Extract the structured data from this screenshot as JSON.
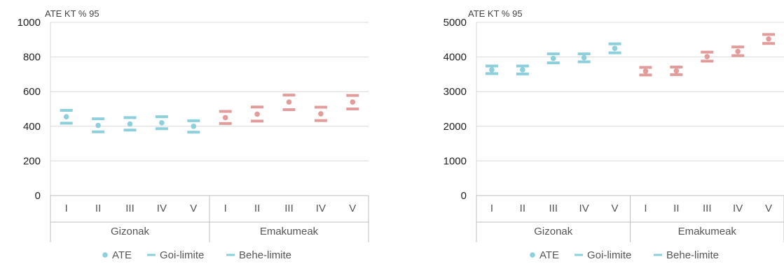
{
  "chart_data": [
    {
      "type": "scatter",
      "title": "",
      "unit_label": "ATE  KT % 95",
      "ylim": [
        0,
        1000
      ],
      "yticks": [
        0,
        200,
        400,
        600,
        800,
        1000
      ],
      "categories": [
        "I",
        "II",
        "III",
        "IV",
        "V",
        "I",
        "II",
        "III",
        "IV",
        "V"
      ],
      "groups": [
        {
          "label": "Gizonak",
          "start": 0,
          "end": 4
        },
        {
          "label": "Emakumeak",
          "start": 5,
          "end": 9
        }
      ],
      "grid": true,
      "legend_position": "bottom",
      "series": [
        {
          "name": "ATE",
          "values": [
            455,
            405,
            413,
            420,
            400,
            450,
            470,
            540,
            472,
            540
          ]
        },
        {
          "name": "Goi-limite",
          "values": [
            492,
            443,
            450,
            455,
            432,
            486,
            511,
            580,
            510,
            578
          ]
        },
        {
          "name": "Behe-limite",
          "values": [
            418,
            368,
            378,
            386,
            366,
            416,
            430,
            496,
            433,
            500
          ]
        }
      ],
      "colors": {
        "Gizonak": "#8ecfdc",
        "Emakumeak": "#e19c9b"
      }
    },
    {
      "type": "scatter",
      "title": "",
      "unit_label": "ATE  KT % 95",
      "ylim": [
        0,
        5000
      ],
      "yticks": [
        0,
        1000,
        2000,
        3000,
        4000,
        5000
      ],
      "categories": [
        "I",
        "II",
        "III",
        "IV",
        "V",
        "I",
        "II",
        "III",
        "IV",
        "V"
      ],
      "groups": [
        {
          "label": "Gizonak",
          "start": 0,
          "end": 4
        },
        {
          "label": "Emakumeak",
          "start": 5,
          "end": 9
        }
      ],
      "grid": true,
      "legend_position": "bottom",
      "series": [
        {
          "name": "ATE",
          "values": [
            3630,
            3630,
            3960,
            3980,
            4250,
            3590,
            3600,
            4010,
            4160,
            4520
          ]
        },
        {
          "name": "Goi-limite",
          "values": [
            3740,
            3740,
            4090,
            4090,
            4380,
            3700,
            3710,
            4140,
            4290,
            4650
          ]
        },
        {
          "name": "Behe-limite",
          "values": [
            3520,
            3510,
            3830,
            3860,
            4120,
            3480,
            3490,
            3880,
            4040,
            4390
          ]
        }
      ],
      "colors": {
        "Gizonak": "#8ecfdc",
        "Emakumeak": "#e19c9b"
      }
    }
  ]
}
